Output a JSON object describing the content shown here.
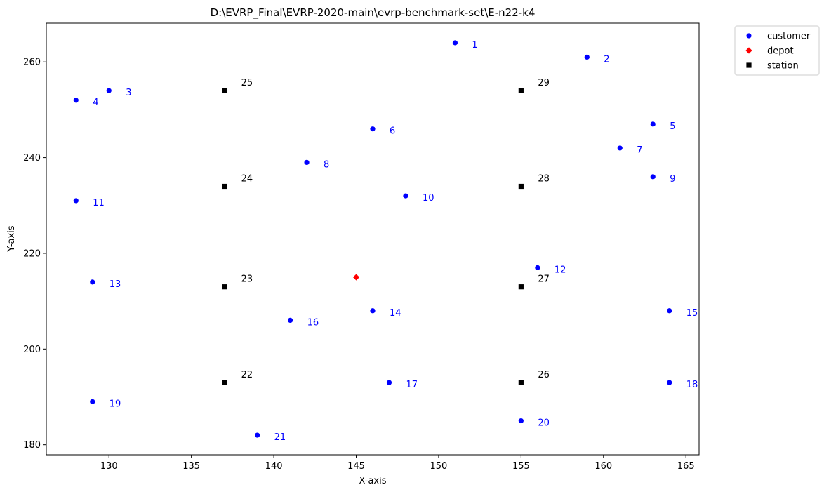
{
  "chart_data": {
    "type": "scatter",
    "title": "D:\\EVRP_Final\\EVRP-2020-main\\evrp-benchmark-set\\E-n22-k4",
    "xlabel": "X-axis",
    "ylabel": "Y-axis",
    "xlim": [
      126.2,
      165.8
    ],
    "ylim": [
      177.9,
      268.1
    ],
    "xticks": [
      130,
      135,
      140,
      145,
      150,
      155,
      160,
      165
    ],
    "yticks": [
      180,
      200,
      220,
      240,
      260
    ],
    "grid": false,
    "legend_position": "outside-top-right",
    "colors": {
      "customer": "#0000ff",
      "depot": "#ff0000",
      "station": "#000000"
    },
    "series": [
      {
        "name": "customer",
        "marker": "circle",
        "points": [
          {
            "id": "1",
            "x": 151,
            "y": 264
          },
          {
            "id": "2",
            "x": 159,
            "y": 261
          },
          {
            "id": "3",
            "x": 130,
            "y": 254
          },
          {
            "id": "4",
            "x": 128,
            "y": 252
          },
          {
            "id": "5",
            "x": 163,
            "y": 247
          },
          {
            "id": "6",
            "x": 146,
            "y": 246
          },
          {
            "id": "7",
            "x": 161,
            "y": 242
          },
          {
            "id": "8",
            "x": 142,
            "y": 239
          },
          {
            "id": "9",
            "x": 163,
            "y": 236
          },
          {
            "id": "10",
            "x": 148,
            "y": 232
          },
          {
            "id": "11",
            "x": 128,
            "y": 231
          },
          {
            "id": "12",
            "x": 156,
            "y": 217
          },
          {
            "id": "13",
            "x": 129,
            "y": 214
          },
          {
            "id": "14",
            "x": 146,
            "y": 208
          },
          {
            "id": "15",
            "x": 164,
            "y": 208
          },
          {
            "id": "16",
            "x": 141,
            "y": 206
          },
          {
            "id": "17",
            "x": 147,
            "y": 193
          },
          {
            "id": "18",
            "x": 164,
            "y": 193
          },
          {
            "id": "19",
            "x": 129,
            "y": 189
          },
          {
            "id": "20",
            "x": 155,
            "y": 185
          },
          {
            "id": "21",
            "x": 139,
            "y": 182
          }
        ]
      },
      {
        "name": "depot",
        "marker": "diamond",
        "points": [
          {
            "id": "",
            "x": 145,
            "y": 215
          }
        ]
      },
      {
        "name": "station",
        "marker": "square",
        "points": [
          {
            "id": "22",
            "x": 137,
            "y": 193
          },
          {
            "id": "23",
            "x": 137,
            "y": 213
          },
          {
            "id": "24",
            "x": 137,
            "y": 234
          },
          {
            "id": "25",
            "x": 137,
            "y": 254
          },
          {
            "id": "26",
            "x": 155,
            "y": 193
          },
          {
            "id": "27",
            "x": 155,
            "y": 213
          },
          {
            "id": "28",
            "x": 155,
            "y": 234
          },
          {
            "id": "29",
            "x": 155,
            "y": 254
          }
        ]
      }
    ]
  }
}
